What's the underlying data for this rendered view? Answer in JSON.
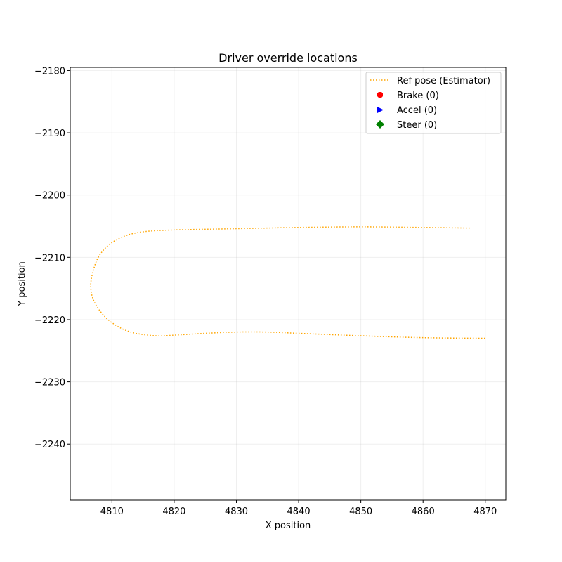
{
  "chart_data": {
    "type": "line",
    "title": "Driver override locations",
    "xlabel": "X position",
    "ylabel": "Y position",
    "xlim": [
      4803.3,
      4873.3
    ],
    "ylim": [
      -2249.0,
      -2179.5
    ],
    "xticks": [
      4810,
      4820,
      4830,
      4840,
      4850,
      4860,
      4870
    ],
    "yticks": [
      -2180,
      -2190,
      -2200,
      -2210,
      -2220,
      -2230,
      -2240
    ],
    "grid": true,
    "legend_position": "upper right",
    "series": [
      {
        "name": "Ref pose (Estimator)",
        "style": "dotted",
        "color": "#ffa500",
        "points": [
          [
            4867.5,
            -2205.3
          ],
          [
            4860.0,
            -2205.2
          ],
          [
            4850.0,
            -2205.1
          ],
          [
            4840.0,
            -2205.2
          ],
          [
            4830.0,
            -2205.4
          ],
          [
            4820.0,
            -2205.6
          ],
          [
            4815.0,
            -2205.9
          ],
          [
            4812.0,
            -2206.6
          ],
          [
            4809.5,
            -2208.0
          ],
          [
            4807.8,
            -2210.0
          ],
          [
            4806.9,
            -2212.5
          ],
          [
            4806.6,
            -2214.5
          ],
          [
            4806.9,
            -2216.5
          ],
          [
            4808.0,
            -2218.5
          ],
          [
            4810.0,
            -2220.5
          ],
          [
            4813.0,
            -2222.0
          ],
          [
            4817.0,
            -2222.6
          ],
          [
            4820.0,
            -2222.5
          ],
          [
            4825.0,
            -2222.2
          ],
          [
            4830.0,
            -2222.0
          ],
          [
            4835.0,
            -2222.0
          ],
          [
            4840.0,
            -2222.2
          ],
          [
            4850.0,
            -2222.6
          ],
          [
            4860.0,
            -2222.9
          ],
          [
            4870.0,
            -2223.0
          ]
        ]
      },
      {
        "name": "Brake (0)",
        "marker": "octagon",
        "color": "#ff0000",
        "points": []
      },
      {
        "name": "Accel (0)",
        "marker": "triangle-right",
        "color": "#0000ff",
        "points": []
      },
      {
        "name": "Steer (0)",
        "marker": "diamond",
        "color": "#008000",
        "points": []
      }
    ]
  }
}
